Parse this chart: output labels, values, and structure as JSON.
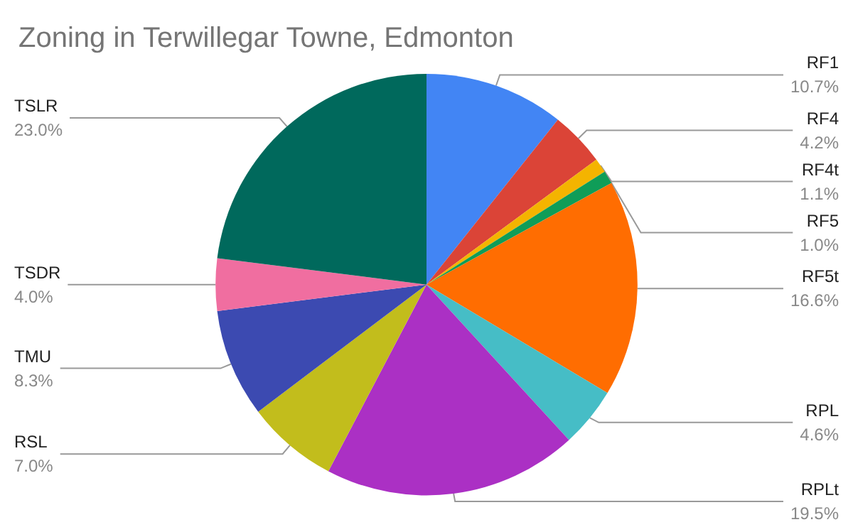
{
  "chart_data": {
    "type": "pie",
    "title": "Zoning in Terwillegar Towne, Edmonton",
    "categories": [
      "RF1",
      "RF4",
      "RF4t",
      "RF5",
      "RF5t",
      "RPL",
      "RPLt",
      "RSL",
      "TMU",
      "TSDR",
      "TSLR"
    ],
    "values": [
      10.7,
      4.2,
      1.1,
      1.0,
      16.6,
      4.6,
      19.5,
      7.0,
      8.3,
      4.0,
      23.0
    ],
    "value_labels": [
      "10.7%",
      "4.2%",
      "1.1%",
      "1.0%",
      "16.6%",
      "4.6%",
      "19.5%",
      "7.0%",
      "8.3%",
      "4.0%",
      "23.0%"
    ],
    "colors": [
      "#4285f4",
      "#db4437",
      "#f4b400",
      "#0f9d58",
      "#ff6d01",
      "#46bdc6",
      "#ab30c4",
      "#c2bd1c",
      "#3c4ab1",
      "#f06ea0",
      "#00695c"
    ],
    "legend": false
  }
}
